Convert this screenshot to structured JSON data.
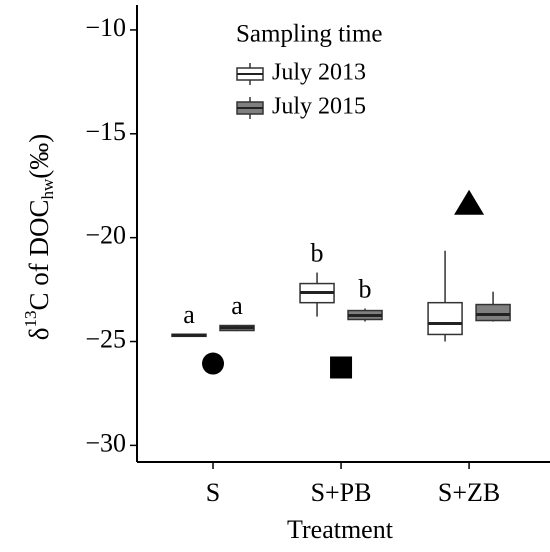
{
  "chart_data": {
    "type": "box",
    "ylabel": [
      "δ",
      "13",
      "C of DOC",
      "hw",
      "(‰)"
    ],
    "xlabel": "Treatment",
    "categories": [
      "S",
      "S+PB",
      "S+ZB"
    ],
    "legend_title": "Sampling time",
    "legend_position": "upper left",
    "ylim": [
      -30.8,
      -8.8
    ],
    "yticks": [
      {
        "value": -30,
        "label": "−30"
      },
      {
        "value": -25,
        "label": "−25"
      },
      {
        "value": -20,
        "label": "−20"
      },
      {
        "value": -15,
        "label": "−15"
      },
      {
        "value": -10,
        "label": "−10"
      }
    ],
    "series": [
      {
        "name": "July 2013",
        "color": "#ffffff",
        "min": [
          -24.75,
          -23.8,
          -25.0
        ],
        "q1": [
          -24.75,
          -23.13,
          -24.66
        ],
        "median": [
          -24.7,
          -22.64,
          -24.13
        ],
        "q3": [
          -24.65,
          -22.21,
          -23.13
        ],
        "max": [
          -24.65,
          -21.68,
          -20.63
        ],
        "labels": [
          "a",
          "b",
          null
        ]
      },
      {
        "name": "July 2015",
        "color": "#808080",
        "min": [
          -24.5,
          -24.04,
          -24.04
        ],
        "q1": [
          -24.47,
          -23.94,
          -23.99
        ],
        "median": [
          -24.33,
          -23.75,
          -23.7
        ],
        "q3": [
          -24.23,
          -23.51,
          -23.22
        ],
        "max": [
          -24.2,
          -23.41,
          -22.6
        ],
        "labels": [
          "a",
          "b",
          null
        ]
      }
    ],
    "markers": {
      "values": [
        -26.06,
        -26.25,
        -18.37
      ],
      "shapes": [
        "circle",
        "square",
        "triangle"
      ],
      "color": "#000000"
    }
  }
}
